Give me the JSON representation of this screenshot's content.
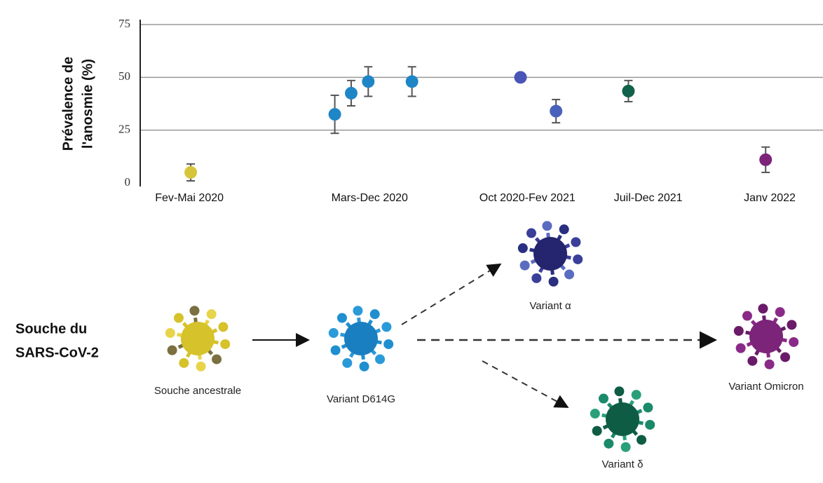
{
  "chart_data": {
    "type": "errorbar",
    "ylabel": [
      "Prévalence de",
      "l'anosmie (%)"
    ],
    "x": [
      7.4,
      28.5,
      30.9,
      33.4,
      39.8,
      55.7,
      60.9,
      71.5,
      91.6
    ],
    "values": [
      5,
      32.5,
      42.5,
      48,
      48,
      50,
      34,
      43.5,
      11
    ],
    "errors": [
      4,
      9,
      6,
      7,
      7,
      1,
      5.5,
      5,
      6
    ],
    "colors": [
      "#d6c53a",
      "#1f86c6",
      "#1f86c6",
      "#1f86c6",
      "#1f86c6",
      "#4a55b8",
      "#4a62bb",
      "#12614a",
      "#7b2479"
    ],
    "xlim": [
      0,
      100
    ],
    "xticks": [
      {
        "value": 7.2,
        "label": "Fev-Mai 2020"
      },
      {
        "value": 33.6,
        "label": "Mars-Dec 2020"
      },
      {
        "value": 56.7,
        "label": "Oct 2020-Fev 2021"
      },
      {
        "value": 74.4,
        "label": "Juil-Dec 2021"
      },
      {
        "value": 92.2,
        "label": "Janv 2022"
      }
    ],
    "ylim": [
      0,
      75
    ],
    "yticks": [
      0,
      25,
      50,
      75
    ],
    "grid": true
  },
  "diagram": {
    "title": [
      "Souche du",
      "SARS-CoV-2"
    ],
    "nodes": [
      {
        "label": "Souche ancestrale"
      },
      {
        "label": "Variant D614G"
      },
      {
        "label": "Variant α"
      },
      {
        "label": "Variant Omicron"
      },
      {
        "label": "Variant δ"
      }
    ]
  }
}
